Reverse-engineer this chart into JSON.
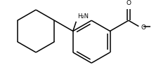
{
  "bg_color": "#ffffff",
  "line_color": "#000000",
  "line_width": 1.1,
  "text_color": "#000000",
  "nh2_label": "H₂N",
  "o_label": "O",
  "figsize": [
    2.39,
    1.03
  ],
  "dpi": 100
}
